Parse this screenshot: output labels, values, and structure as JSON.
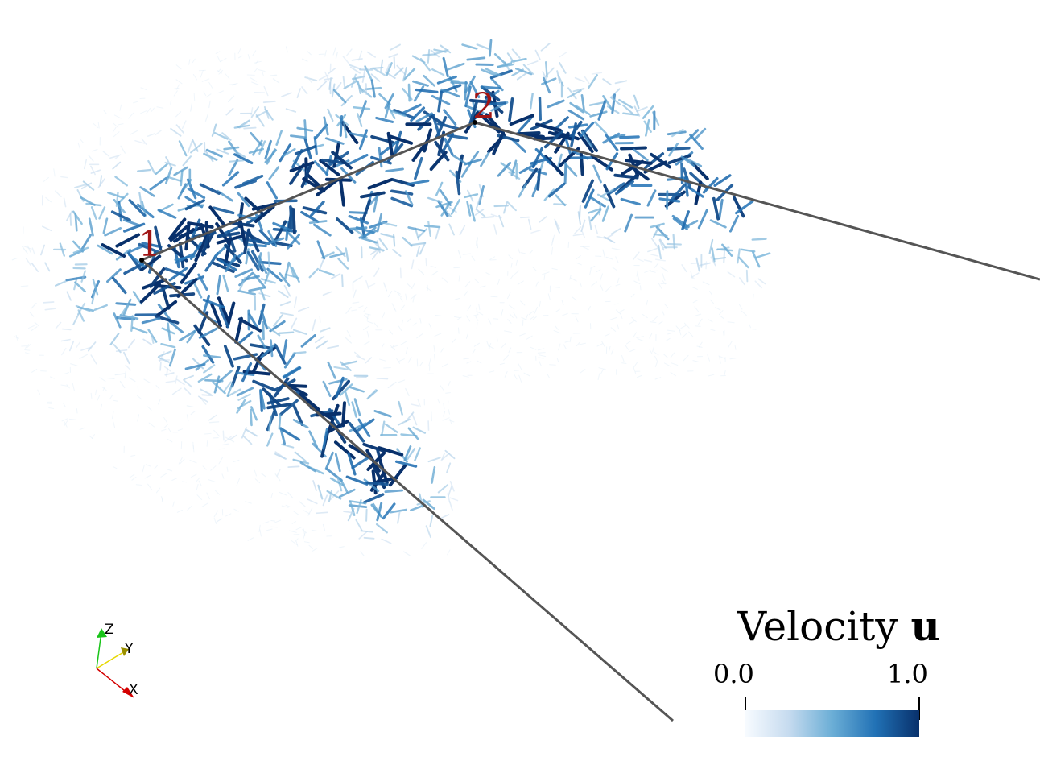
{
  "viewer": {
    "point_labels": [
      "1",
      "2"
    ],
    "axes_triad": {
      "x_label": "X",
      "y_label": "Y",
      "z_label": "Z",
      "x_color": "#d40000",
      "y_color": "#e6d800",
      "z_color": "#19c419"
    },
    "line_color": "#555555",
    "glyph_colormap": [
      "#f7fbff",
      "#c6dbef",
      "#6baed6",
      "#2171b5",
      "#08306b"
    ]
  },
  "legend": {
    "title_text": "Velocity ",
    "title_symbol": "u",
    "min_label": "0.0",
    "max_label": "1.0",
    "range": [
      0.0,
      1.0
    ]
  }
}
